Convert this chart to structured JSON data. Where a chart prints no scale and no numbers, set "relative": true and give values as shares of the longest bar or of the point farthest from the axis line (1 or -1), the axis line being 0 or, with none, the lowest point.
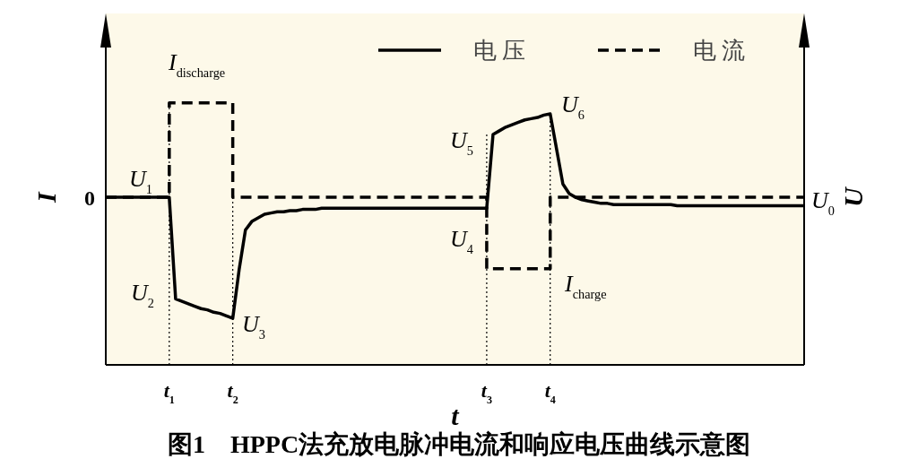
{
  "chart_data": {
    "type": "line",
    "title": "图1　HPPC法充放电脉冲电流和响应电压曲线示意图",
    "xlabel": "t",
    "ylabel": "I",
    "y2label": "U",
    "relative": true,
    "legend": "top right",
    "grid": "x",
    "categories": [
      null,
      null,
      null,
      null,
      null,
      null,
      null,
      null,
      null,
      null,
      "*t*$_{1}$",
      null,
      null,
      null,
      null,
      null,
      null,
      null,
      null,
      null,
      "*t*$_{2}$",
      null,
      null,
      null,
      null,
      null,
      null,
      null,
      null,
      null,
      null,
      null,
      null,
      null,
      null,
      null,
      null,
      null,
      null,
      null,
      null,
      null,
      null,
      null,
      null,
      null,
      null,
      null,
      null,
      null,
      null,
      null,
      null,
      null,
      null,
      null,
      null,
      null,
      null,
      null,
      "*t*$_{3}$",
      null,
      null,
      null,
      null,
      null,
      null,
      null,
      null,
      null,
      "*t*$_{4}$",
      null,
      null,
      null,
      null,
      null,
      null,
      null,
      null,
      null,
      null,
      null,
      null,
      null,
      null,
      null,
      null,
      null,
      null,
      null,
      null,
      null,
      null,
      null,
      null,
      null,
      null,
      null,
      null,
      null,
      null,
      null,
      null,
      null,
      null,
      null,
      null,
      null,
      null,
      null,
      null
    ],
    "series": [
      {
        "name": "电压",
        "color": "#000000",
        "line_style": "solid",
        "values": [
          0,
          0,
          0,
          0,
          0,
          0,
          0,
          0,
          0,
          0,
          0,
          -0.84,
          -0.86,
          -0.88,
          -0.9,
          -0.92,
          -0.93,
          -0.95,
          -0.96,
          -0.98,
          -1.0,
          -0.6,
          -0.27,
          -0.2,
          -0.17,
          -0.14,
          -0.13,
          -0.12,
          -0.12,
          -0.11,
          -0.11,
          -0.1,
          -0.1,
          -0.1,
          -0.09,
          -0.09,
          -0.09,
          -0.09,
          -0.09,
          -0.09,
          -0.09,
          -0.09,
          -0.09,
          -0.09,
          -0.09,
          -0.09,
          -0.09,
          -0.09,
          -0.09,
          -0.09,
          -0.09,
          -0.09,
          -0.09,
          -0.09,
          -0.09,
          -0.09,
          -0.09,
          -0.09,
          -0.09,
          -0.09,
          -0.09,
          0.52,
          0.55,
          0.58,
          0.6,
          0.62,
          0.64,
          0.65,
          0.66,
          0.68,
          0.69,
          0.4,
          0.11,
          0.03,
          0,
          -0.02,
          -0.03,
          -0.04,
          -0.05,
          -0.05,
          -0.06,
          -0.06,
          -0.06,
          -0.06,
          -0.06,
          -0.06,
          -0.06,
          -0.06,
          -0.06,
          -0.06,
          -0.07,
          -0.07,
          -0.07,
          -0.07,
          -0.07,
          -0.07,
          -0.07,
          -0.07,
          -0.07,
          -0.07,
          -0.07,
          -0.07,
          -0.07,
          -0.07,
          -0.07,
          -0.07,
          -0.07,
          -0.07,
          -0.07,
          -0.07,
          -0.07
        ]
      },
      {
        "name": "电流",
        "type": "step",
        "color": "#000000",
        "line_style": "dashed",
        "values": [
          0,
          0,
          0,
          0,
          0,
          0,
          0,
          0,
          0,
          0,
          0.78,
          0.78,
          0.78,
          0.78,
          0.78,
          0.78,
          0.78,
          0.78,
          0.78,
          0.78,
          0,
          0,
          0,
          0,
          0,
          0,
          0,
          0,
          0,
          0,
          0,
          0,
          0,
          0,
          0,
          0,
          0,
          0,
          0,
          0,
          0,
          0,
          0,
          0,
          0,
          0,
          0,
          0,
          0,
          0,
          0,
          0,
          0,
          0,
          0,
          0,
          0,
          0,
          0,
          0,
          -0.59,
          -0.59,
          -0.59,
          -0.59,
          -0.59,
          -0.59,
          -0.59,
          -0.59,
          -0.59,
          -0.59,
          0,
          0,
          0,
          0,
          0,
          0,
          0,
          0,
          0,
          0,
          0,
          0,
          0,
          0,
          0,
          0,
          0,
          0,
          0,
          0,
          0,
          0,
          0,
          0,
          0,
          0,
          0,
          0,
          0,
          0,
          0,
          0,
          0,
          0,
          0,
          0,
          0,
          0,
          0,
          0,
          0
        ]
      }
    ],
    "annotations": [
      "0",
      "*U*$_{1}$",
      "*U*$_{2}$",
      "*U*$_{3}$",
      "*U*$_{4}$",
      "*U*$_{5}$",
      "*U*$_{6}$",
      "*U*$_{0}$",
      "*I*$_{discharge}$",
      "*I*$_{charge}$"
    ]
  }
}
